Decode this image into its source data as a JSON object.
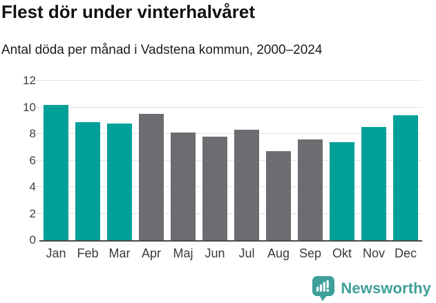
{
  "title": "Flest dör under vinterhalvåret",
  "subtitle": "Antal döda per månad i Vadstena kommun, 2000–2024",
  "chart_data": {
    "type": "bar",
    "title": "Flest dör under vinterhalvåret",
    "subtitle": "Antal döda per månad i Vadstena kommun, 2000–2024",
    "categories": [
      "Jan",
      "Feb",
      "Mar",
      "Apr",
      "Maj",
      "Jun",
      "Jul",
      "Aug",
      "Sep",
      "Okt",
      "Nov",
      "Dec"
    ],
    "values": [
      10.2,
      8.9,
      8.8,
      9.5,
      8.1,
      7.8,
      8.3,
      6.7,
      7.6,
      7.4,
      8.5,
      9.4
    ],
    "highlighted_categories": [
      "Jan",
      "Feb",
      "Mar",
      "Okt",
      "Nov",
      "Dec"
    ],
    "yticks": [
      0,
      2,
      4,
      6,
      8,
      10,
      12
    ],
    "ylim": [
      0,
      12
    ],
    "grid": true,
    "legend": "none",
    "colors": {
      "highlight": "#00a099",
      "default": "#6c6c71"
    }
  },
  "footer": {
    "brand": "Newsworthy",
    "logo_icon": "chart-speech-bubble-icon",
    "brand_color": "#3f9f99"
  }
}
